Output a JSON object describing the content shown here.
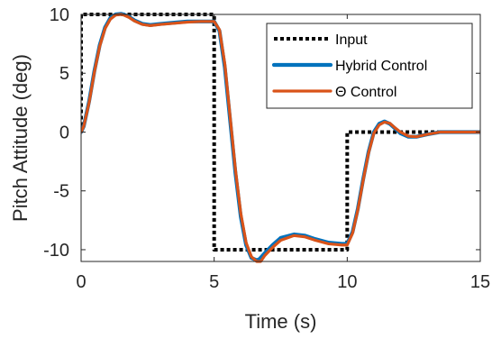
{
  "chart_data": {
    "type": "line",
    "xlabel": "Time (s)",
    "ylabel": "Pitch Attitude (deg)",
    "xlim": [
      0,
      15
    ],
    "ylim": [
      -11,
      10
    ],
    "xticks": [
      0,
      5,
      10,
      15
    ],
    "yticks": [
      10,
      5,
      0,
      -5,
      -10
    ],
    "grid": false,
    "legend_position": "top-right",
    "series": [
      {
        "name": "Input",
        "color": "#000000",
        "style": "dotted",
        "x": [
          0,
          0,
          5,
          5,
          10,
          10,
          15
        ],
        "y": [
          0,
          10,
          10,
          -10,
          -10,
          0,
          0
        ]
      },
      {
        "name": "Hybrid Control",
        "color": "#0072BD",
        "style": "solid",
        "x": [
          0,
          0.1,
          0.3,
          0.5,
          0.7,
          0.9,
          1.1,
          1.3,
          1.5,
          1.6,
          1.8,
          2.0,
          2.3,
          2.6,
          3.0,
          3.5,
          4.0,
          4.5,
          5.0,
          5.2,
          5.4,
          5.6,
          5.8,
          6.0,
          6.2,
          6.4,
          6.6,
          6.7,
          6.9,
          7.2,
          7.5,
          8.0,
          8.4,
          8.8,
          9.3,
          9.8,
          10.0,
          10.2,
          10.4,
          10.6,
          10.8,
          11.0,
          11.2,
          11.4,
          11.6,
          11.8,
          12.0,
          12.3,
          12.6,
          13.0,
          13.5,
          14.0,
          14.5,
          15.0
        ],
        "y": [
          0,
          0.5,
          2.6,
          5.2,
          7.4,
          8.9,
          9.7,
          10.0,
          10.05,
          10.0,
          9.8,
          9.5,
          9.2,
          9.1,
          9.2,
          9.3,
          9.4,
          9.4,
          9.4,
          8.6,
          5.5,
          1.0,
          -3.5,
          -7.2,
          -9.6,
          -10.7,
          -10.9,
          -10.8,
          -10.3,
          -9.6,
          -9.0,
          -8.7,
          -8.8,
          -9.1,
          -9.4,
          -9.5,
          -9.5,
          -8.5,
          -6.5,
          -4.0,
          -1.7,
          0.0,
          0.7,
          0.9,
          0.7,
          0.3,
          -0.1,
          -0.4,
          -0.4,
          -0.2,
          0.0,
          0.0,
          0.0,
          0.0
        ]
      },
      {
        "name": "Θ Control",
        "color": "#D95319",
        "style": "solid",
        "x": [
          0,
          0.1,
          0.3,
          0.5,
          0.7,
          0.9,
          1.1,
          1.3,
          1.5,
          1.6,
          1.8,
          2.0,
          2.3,
          2.6,
          3.0,
          3.5,
          4.0,
          4.5,
          5.0,
          5.2,
          5.4,
          5.6,
          5.8,
          6.0,
          6.2,
          6.4,
          6.6,
          6.75,
          6.9,
          7.2,
          7.5,
          8.0,
          8.4,
          8.8,
          9.3,
          9.8,
          10.0,
          10.2,
          10.4,
          10.6,
          10.8,
          11.0,
          11.2,
          11.4,
          11.6,
          11.8,
          12.0,
          12.3,
          12.6,
          13.0,
          13.5,
          14.0,
          14.5,
          15.0
        ],
        "y": [
          0,
          0.5,
          2.5,
          5.1,
          7.3,
          8.8,
          9.6,
          9.95,
          10.0,
          9.95,
          9.75,
          9.45,
          9.15,
          9.05,
          9.15,
          9.25,
          9.35,
          9.4,
          9.4,
          8.7,
          5.8,
          1.3,
          -3.2,
          -6.9,
          -9.4,
          -10.6,
          -11.0,
          -11.0,
          -10.5,
          -9.8,
          -9.2,
          -8.8,
          -8.9,
          -9.2,
          -9.5,
          -9.6,
          -9.6,
          -8.6,
          -6.6,
          -4.1,
          -1.8,
          -0.1,
          0.6,
          0.85,
          0.75,
          0.35,
          0.0,
          -0.35,
          -0.4,
          -0.2,
          0.0,
          0.0,
          0.0,
          0.0
        ]
      }
    ]
  }
}
